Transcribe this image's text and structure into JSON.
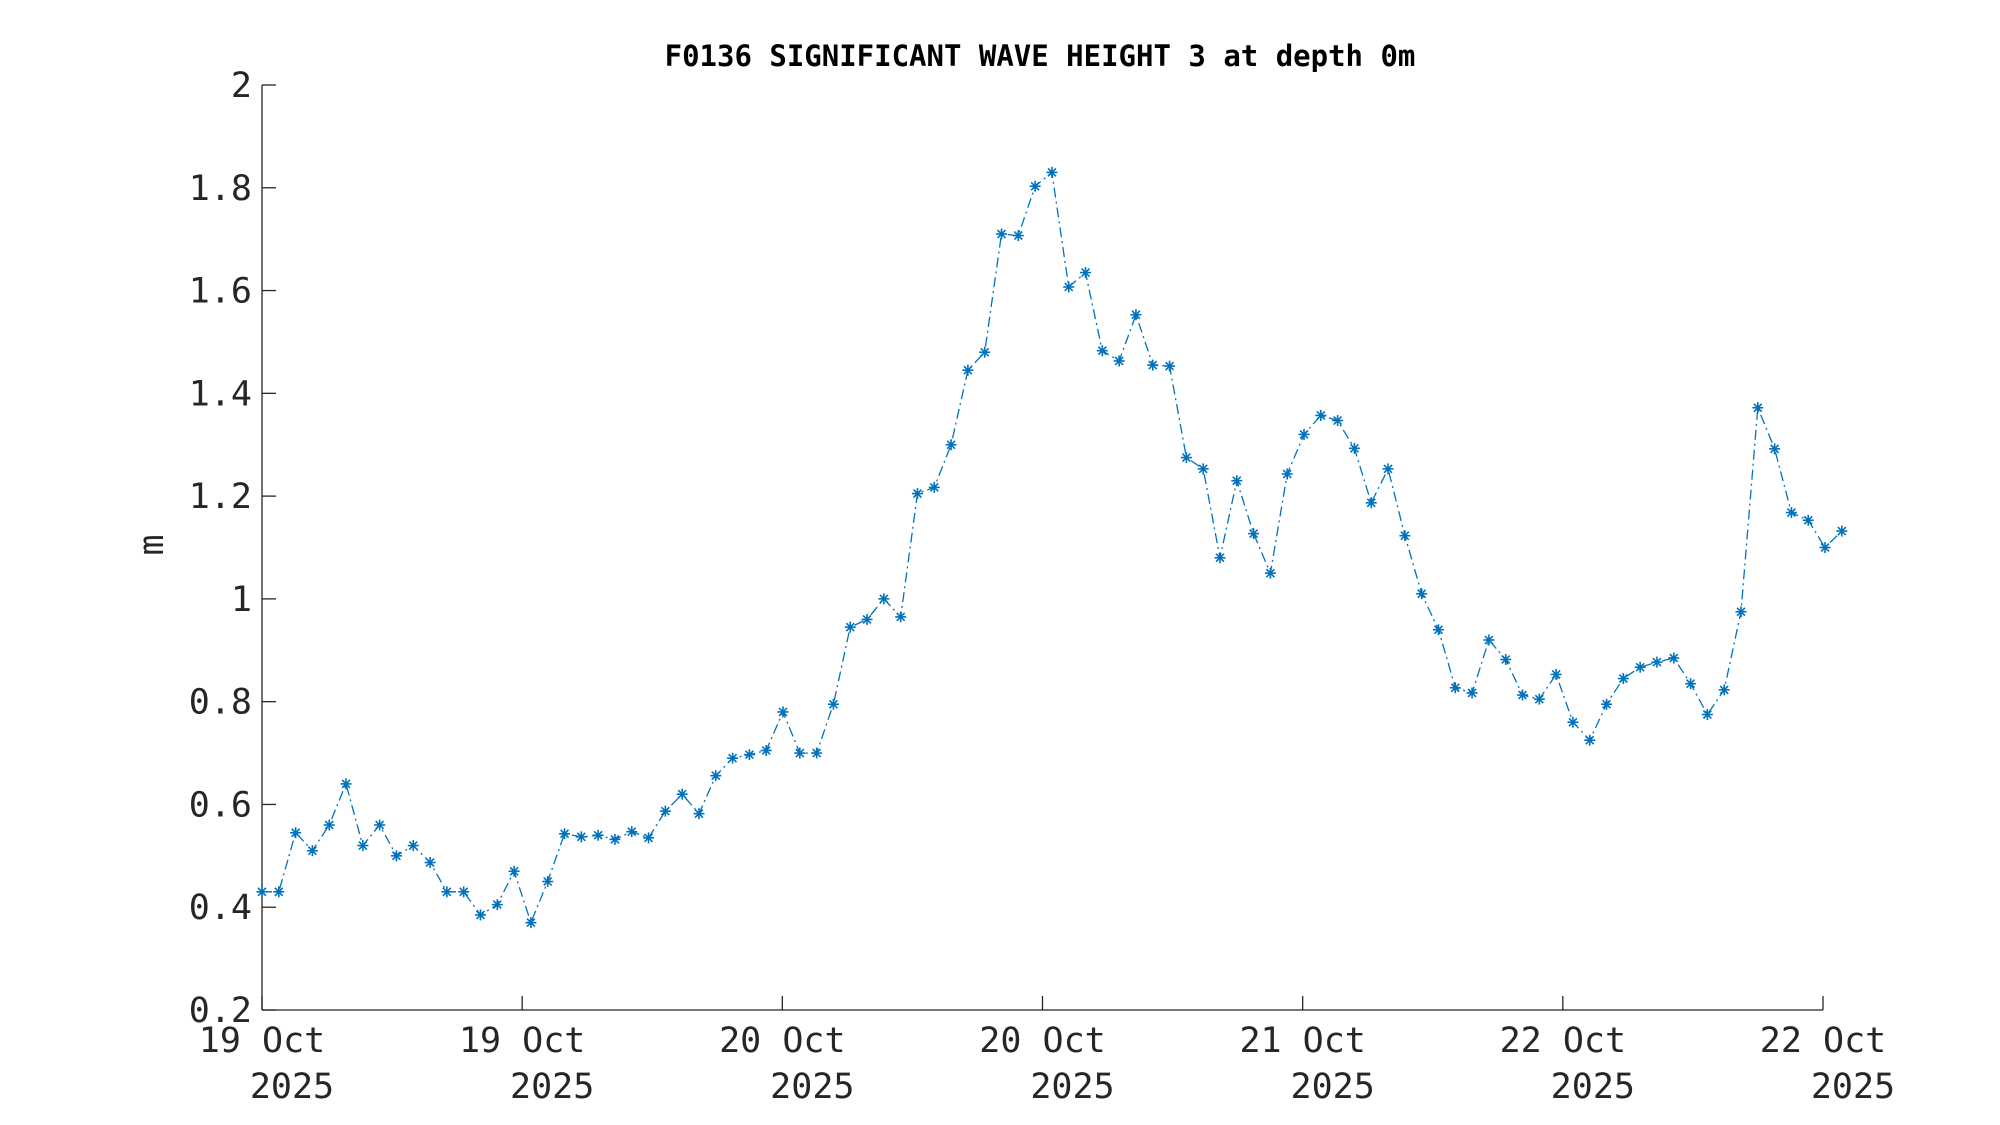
{
  "colors": {
    "series": "#0072BD",
    "axis": "#262626",
    "text": "#262626",
    "title": "#000000"
  },
  "chart_data": {
    "type": "line",
    "title": "F0136 SIGNIFICANT WAVE HEIGHT 3 at depth 0m",
    "xlabel": "",
    "ylabel": "m",
    "xlim": [
      0,
      3
    ],
    "ylim": [
      0.2,
      2
    ],
    "yticks": [
      0.2,
      0.4,
      0.6,
      0.8,
      1,
      1.2,
      1.4,
      1.6,
      1.8,
      2
    ],
    "ytick_labels": [
      "0.2",
      "0.4",
      "0.6",
      "0.8",
      "1",
      "1.2",
      "1.4",
      "1.6",
      "1.8",
      "2"
    ],
    "xticks": [
      0,
      0.5,
      1,
      1.5,
      2,
      2.5,
      3
    ],
    "xtick_labels": [
      [
        "19 Oct",
        "2025"
      ],
      [
        "19 Oct",
        "2025"
      ],
      [
        "20 Oct",
        "2025"
      ],
      [
        "20 Oct",
        "2025"
      ],
      [
        "21 Oct",
        "2025"
      ],
      [
        "22 Oct",
        "2025"
      ],
      [
        "22 Oct",
        "2025"
      ]
    ],
    "grid": false,
    "marker": "*",
    "line_style": "dash-dot",
    "series": [
      {
        "x_step_days": 0.0323,
        "values": [
          0.43,
          0.43,
          0.545,
          0.51,
          0.56,
          0.64,
          0.52,
          0.56,
          0.5,
          0.52,
          0.487,
          0.43,
          0.43,
          0.385,
          0.405,
          0.47,
          0.37,
          0.45,
          0.543,
          0.537,
          0.54,
          0.532,
          0.547,
          0.535,
          0.587,
          0.62,
          0.582,
          0.656,
          0.69,
          0.697,
          0.705,
          0.78,
          0.7,
          0.7,
          0.795,
          0.945,
          0.96,
          1.0,
          0.965,
          1.205,
          1.217,
          1.3,
          1.445,
          1.48,
          1.71,
          1.707,
          1.803,
          1.83,
          1.607,
          1.635,
          1.483,
          1.463,
          1.553,
          1.455,
          1.453,
          1.275,
          1.253,
          1.08,
          1.23,
          1.127,
          1.05,
          1.243,
          1.32,
          1.357,
          1.347,
          1.293,
          1.187,
          1.253,
          1.123,
          1.01,
          0.94,
          0.827,
          0.817,
          0.92,
          0.882,
          0.813,
          0.805,
          0.853,
          0.76,
          0.725,
          0.795,
          0.845,
          0.867,
          0.877,
          0.885,
          0.835,
          0.775,
          0.823,
          0.975,
          1.372,
          1.292,
          1.168,
          1.153,
          1.1,
          1.132
        ]
      }
    ]
  }
}
